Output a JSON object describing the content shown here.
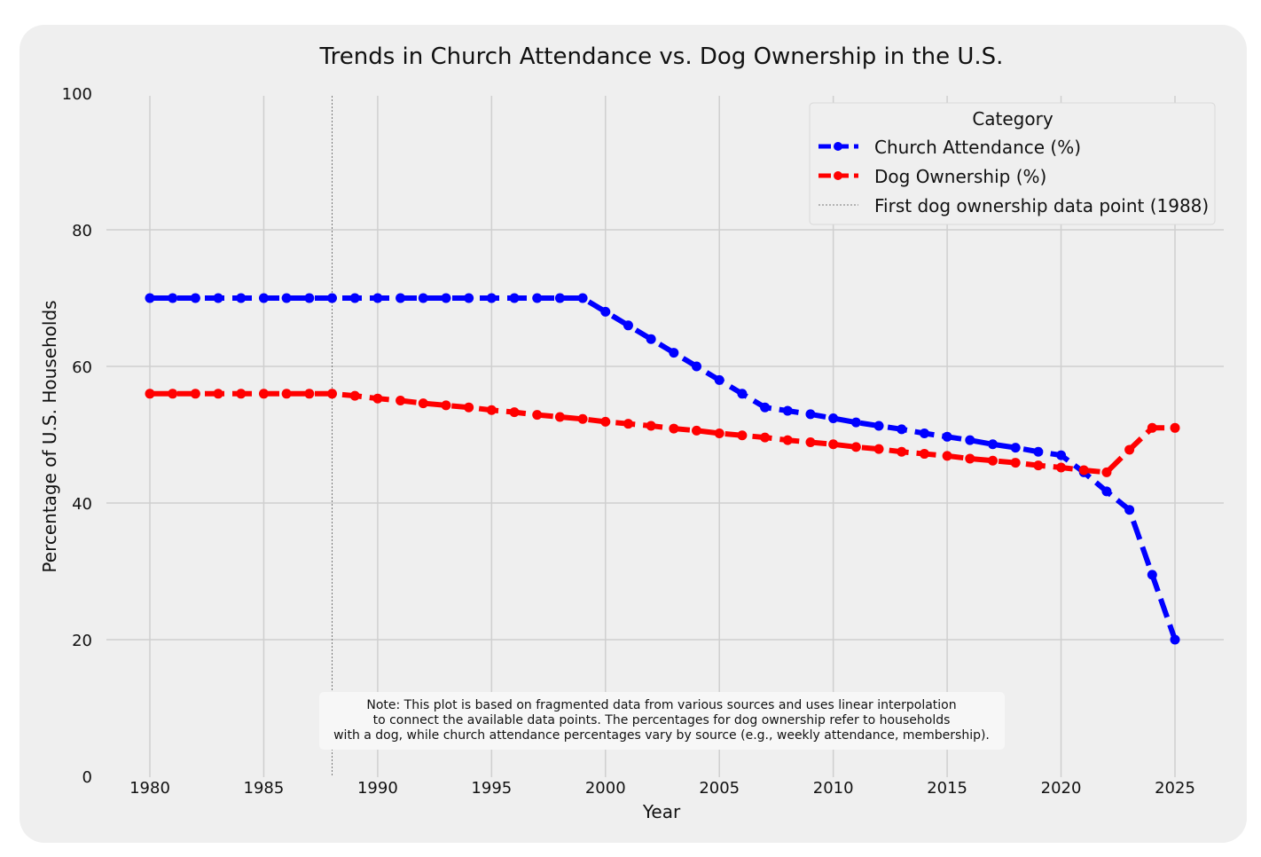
{
  "chart_data": {
    "type": "line",
    "title": "Trends in Church Attendance vs. Dog Ownership in the U.S.",
    "xlabel": "Year",
    "ylabel": "Percentage of U.S. Households",
    "xlim": [
      1978,
      2027
    ],
    "ylim": [
      0,
      100
    ],
    "xticks": [
      1980,
      1985,
      1990,
      1995,
      2000,
      2005,
      2010,
      2015,
      2020,
      2025
    ],
    "yticks": [
      0,
      20,
      40,
      60,
      80,
      100
    ],
    "grid": true,
    "legend": {
      "title": "Category",
      "placement": "top-right",
      "entries": [
        "Church Attendance (%)",
        "Dog Ownership (%)",
        "First dog ownership data point (1988)"
      ]
    },
    "x": [
      1980,
      1981,
      1982,
      1983,
      1984,
      1985,
      1986,
      1987,
      1988,
      1989,
      1990,
      1991,
      1992,
      1993,
      1994,
      1995,
      1996,
      1997,
      1998,
      1999,
      2000,
      2001,
      2002,
      2003,
      2004,
      2005,
      2006,
      2007,
      2008,
      2009,
      2010,
      2011,
      2012,
      2013,
      2014,
      2015,
      2016,
      2017,
      2018,
      2019,
      2020,
      2021,
      2022,
      2023,
      2024,
      2025
    ],
    "series": [
      {
        "name": "Church Attendance (%)",
        "color": "#0000ff",
        "values": [
          70,
          70,
          70,
          70,
          70,
          70,
          70,
          70,
          70,
          70,
          70,
          70,
          70,
          70,
          70,
          70,
          70,
          70,
          70,
          70,
          68,
          66,
          64,
          62,
          60,
          58,
          56,
          54,
          53.5,
          53,
          52.4,
          51.8,
          51.3,
          50.8,
          50.2,
          49.7,
          49.2,
          48.6,
          48.1,
          47.5,
          47,
          44.5,
          41.7,
          39,
          29.5,
          20
        ]
      },
      {
        "name": "Dog Ownership (%)",
        "color": "#ff0000",
        "values": [
          56,
          56,
          56,
          56,
          56,
          56,
          56,
          56,
          56,
          55.7,
          55.3,
          55,
          54.6,
          54.3,
          54,
          53.6,
          53.3,
          52.9,
          52.6,
          52.3,
          51.9,
          51.6,
          51.3,
          50.9,
          50.6,
          50.2,
          49.9,
          49.6,
          49.2,
          48.9,
          48.6,
          48.2,
          47.9,
          47.5,
          47.2,
          46.9,
          46.5,
          46.2,
          45.9,
          45.5,
          45.2,
          44.8,
          44.5,
          47.8,
          51,
          51
        ]
      }
    ],
    "vline": {
      "x": 1988,
      "label": "First dog ownership data point (1988)"
    },
    "note": [
      "Note: This plot is based on fragmented data from various sources and uses linear interpolation",
      "to connect the available data points. The percentages for dog ownership refer to households",
      "with a dog, while church attendance percentages vary by source (e.g., weekly attendance, membership)."
    ]
  }
}
